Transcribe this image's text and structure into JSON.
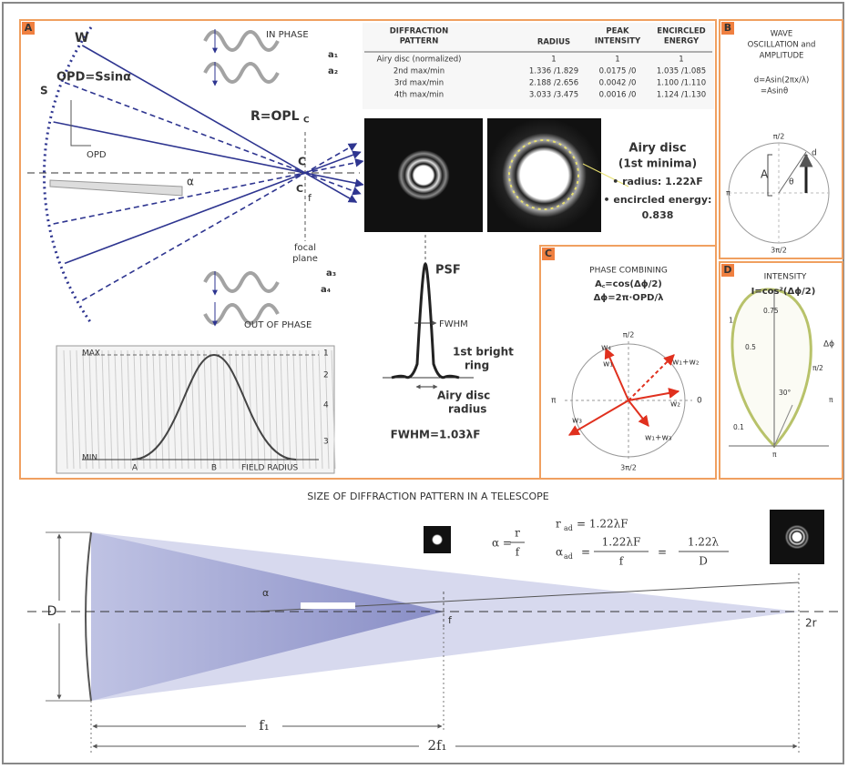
{
  "panel_a": {
    "label": "A",
    "wavefront": "W",
    "aperture": "S",
    "opd_formula": "OPD=Ssinα",
    "opd": "OPD",
    "angle": "α",
    "center": "C",
    "center_lower": "C",
    "focal": "f",
    "focal_plane": [
      "focal",
      "plane"
    ],
    "in_phase": "IN PHASE",
    "out_of_phase": "OUT OF PHASE",
    "radius_label": "R=OPL",
    "radius_sub": "C",
    "wave_labels": [
      "a₁",
      "a₂",
      "a₃",
      "a₄"
    ],
    "graph": {
      "max": "MAX",
      "min": "MIN",
      "left": "A",
      "middle": "B",
      "axis": "FIELD RADIUS",
      "scale": [
        "1",
        "2",
        "4",
        "3"
      ]
    }
  },
  "table": {
    "headers": [
      [
        "DIFFRACTION",
        "PATTERN"
      ],
      [
        "RADIUS"
      ],
      [
        "PEAK",
        "INTENSITY"
      ],
      [
        "ENCIRCLED",
        "ENERGY"
      ]
    ],
    "rows": [
      [
        "Airy disc (normalized)",
        "1",
        "1",
        "1"
      ],
      [
        "2nd max/min",
        "1.336 /1.829",
        "0.0175 /0",
        "1.035 /1.085"
      ],
      [
        "3rd max/min",
        "2.188 /2.656",
        "0.0042 /0",
        "1.100 /1.110"
      ],
      [
        "4th max/min",
        "3.033 /3.475",
        "0.0016 /0",
        "1.124 /1.130"
      ]
    ]
  },
  "airy": {
    "title": "Airy disc",
    "subtitle": "(1st minima)",
    "radius": "• radius: 1.22λF",
    "energy": "• encircled energy:",
    "energy_value": "0.838"
  },
  "psf": {
    "label": "PSF",
    "fwhm": "FWHM",
    "ring": [
      "1st bright",
      "ring"
    ],
    "disc": [
      "Airy disc",
      "radius"
    ],
    "formula": "FWHM=1.03λF"
  },
  "panel_b": {
    "label": "B",
    "title": [
      "WAVE",
      "OSCILLATION and",
      "AMPLITUDE"
    ],
    "formula": [
      "d=Asin(2πx/λ)",
      "=Asinθ"
    ],
    "angles": [
      "π/2",
      "π",
      "3π/2"
    ],
    "amplitude": "A",
    "displacement": "d",
    "phase": "θ"
  },
  "panel_c": {
    "label": "C",
    "title": "PHASE COMBINING",
    "formula": [
      "A꜀=cos(Δϕ/2)",
      "Δϕ=2π·OPD/λ"
    ],
    "angles": [
      "π/2",
      "π",
      "0",
      "3π/2"
    ],
    "vectors": [
      "w₁",
      "w₂",
      "w₃",
      "w₄",
      "w₁+w₂",
      "w₁+w₃"
    ]
  },
  "panel_d": {
    "label": "D",
    "title": "INTENSITY",
    "formula": "I=cos²(Δϕ/2)",
    "levels": [
      "0.75",
      "0.5",
      "0.1"
    ],
    "scale": "1",
    "delta": "Δϕ",
    "angle": "30°",
    "top": "π/2",
    "side": "π",
    "bottom": "π"
  },
  "telescope": {
    "title": "SIZE OF DIFFRACTION PATTERN IN A TELESCOPE",
    "aperture": "D",
    "angle": "α",
    "focal": "f",
    "spot": "2r",
    "f1": "f₁",
    "f2": "2f₁",
    "alpha": "α =",
    "alpha_num": "r",
    "alpha_den": "f",
    "r_ad": "r",
    "r_ad_sub": "ad",
    "r_ad_eq": "= 1.22λF",
    "a_ad": "α",
    "a_ad_sub": "ad",
    "eq": [
      "=",
      "="
    ],
    "num1": "1.22λF",
    "den1": "f",
    "num2": "1.22λ",
    "den2": "D"
  }
}
